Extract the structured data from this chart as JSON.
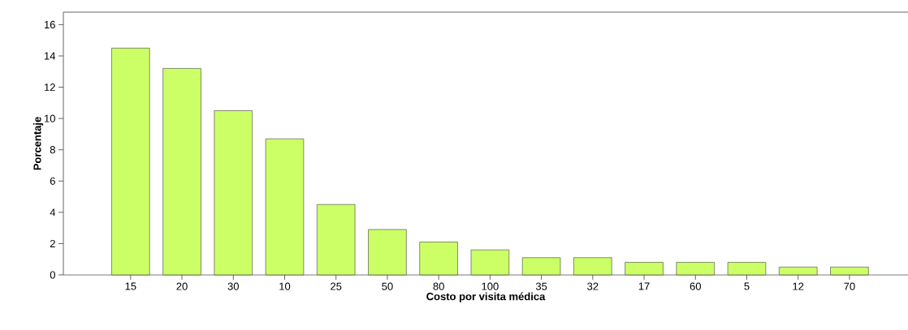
{
  "chart_data": {
    "type": "bar",
    "xlabel": "Costo por visita médica",
    "ylabel": "Porcentaje",
    "categories": [
      "15",
      "20",
      "30",
      "10",
      "25",
      "50",
      "80",
      "100",
      "35",
      "32",
      "17",
      "60",
      "5",
      "12",
      "70"
    ],
    "values": [
      14.5,
      13.2,
      10.5,
      8.7,
      4.5,
      2.9,
      2.1,
      1.6,
      1.1,
      1.1,
      0.8,
      0.8,
      0.8,
      0.5,
      0.5
    ],
    "color": "#ccff66",
    "ylim": [
      0,
      16.8
    ],
    "yticks": [
      0,
      2,
      4,
      6,
      8,
      10,
      12,
      14,
      16
    ],
    "grid": false
  }
}
